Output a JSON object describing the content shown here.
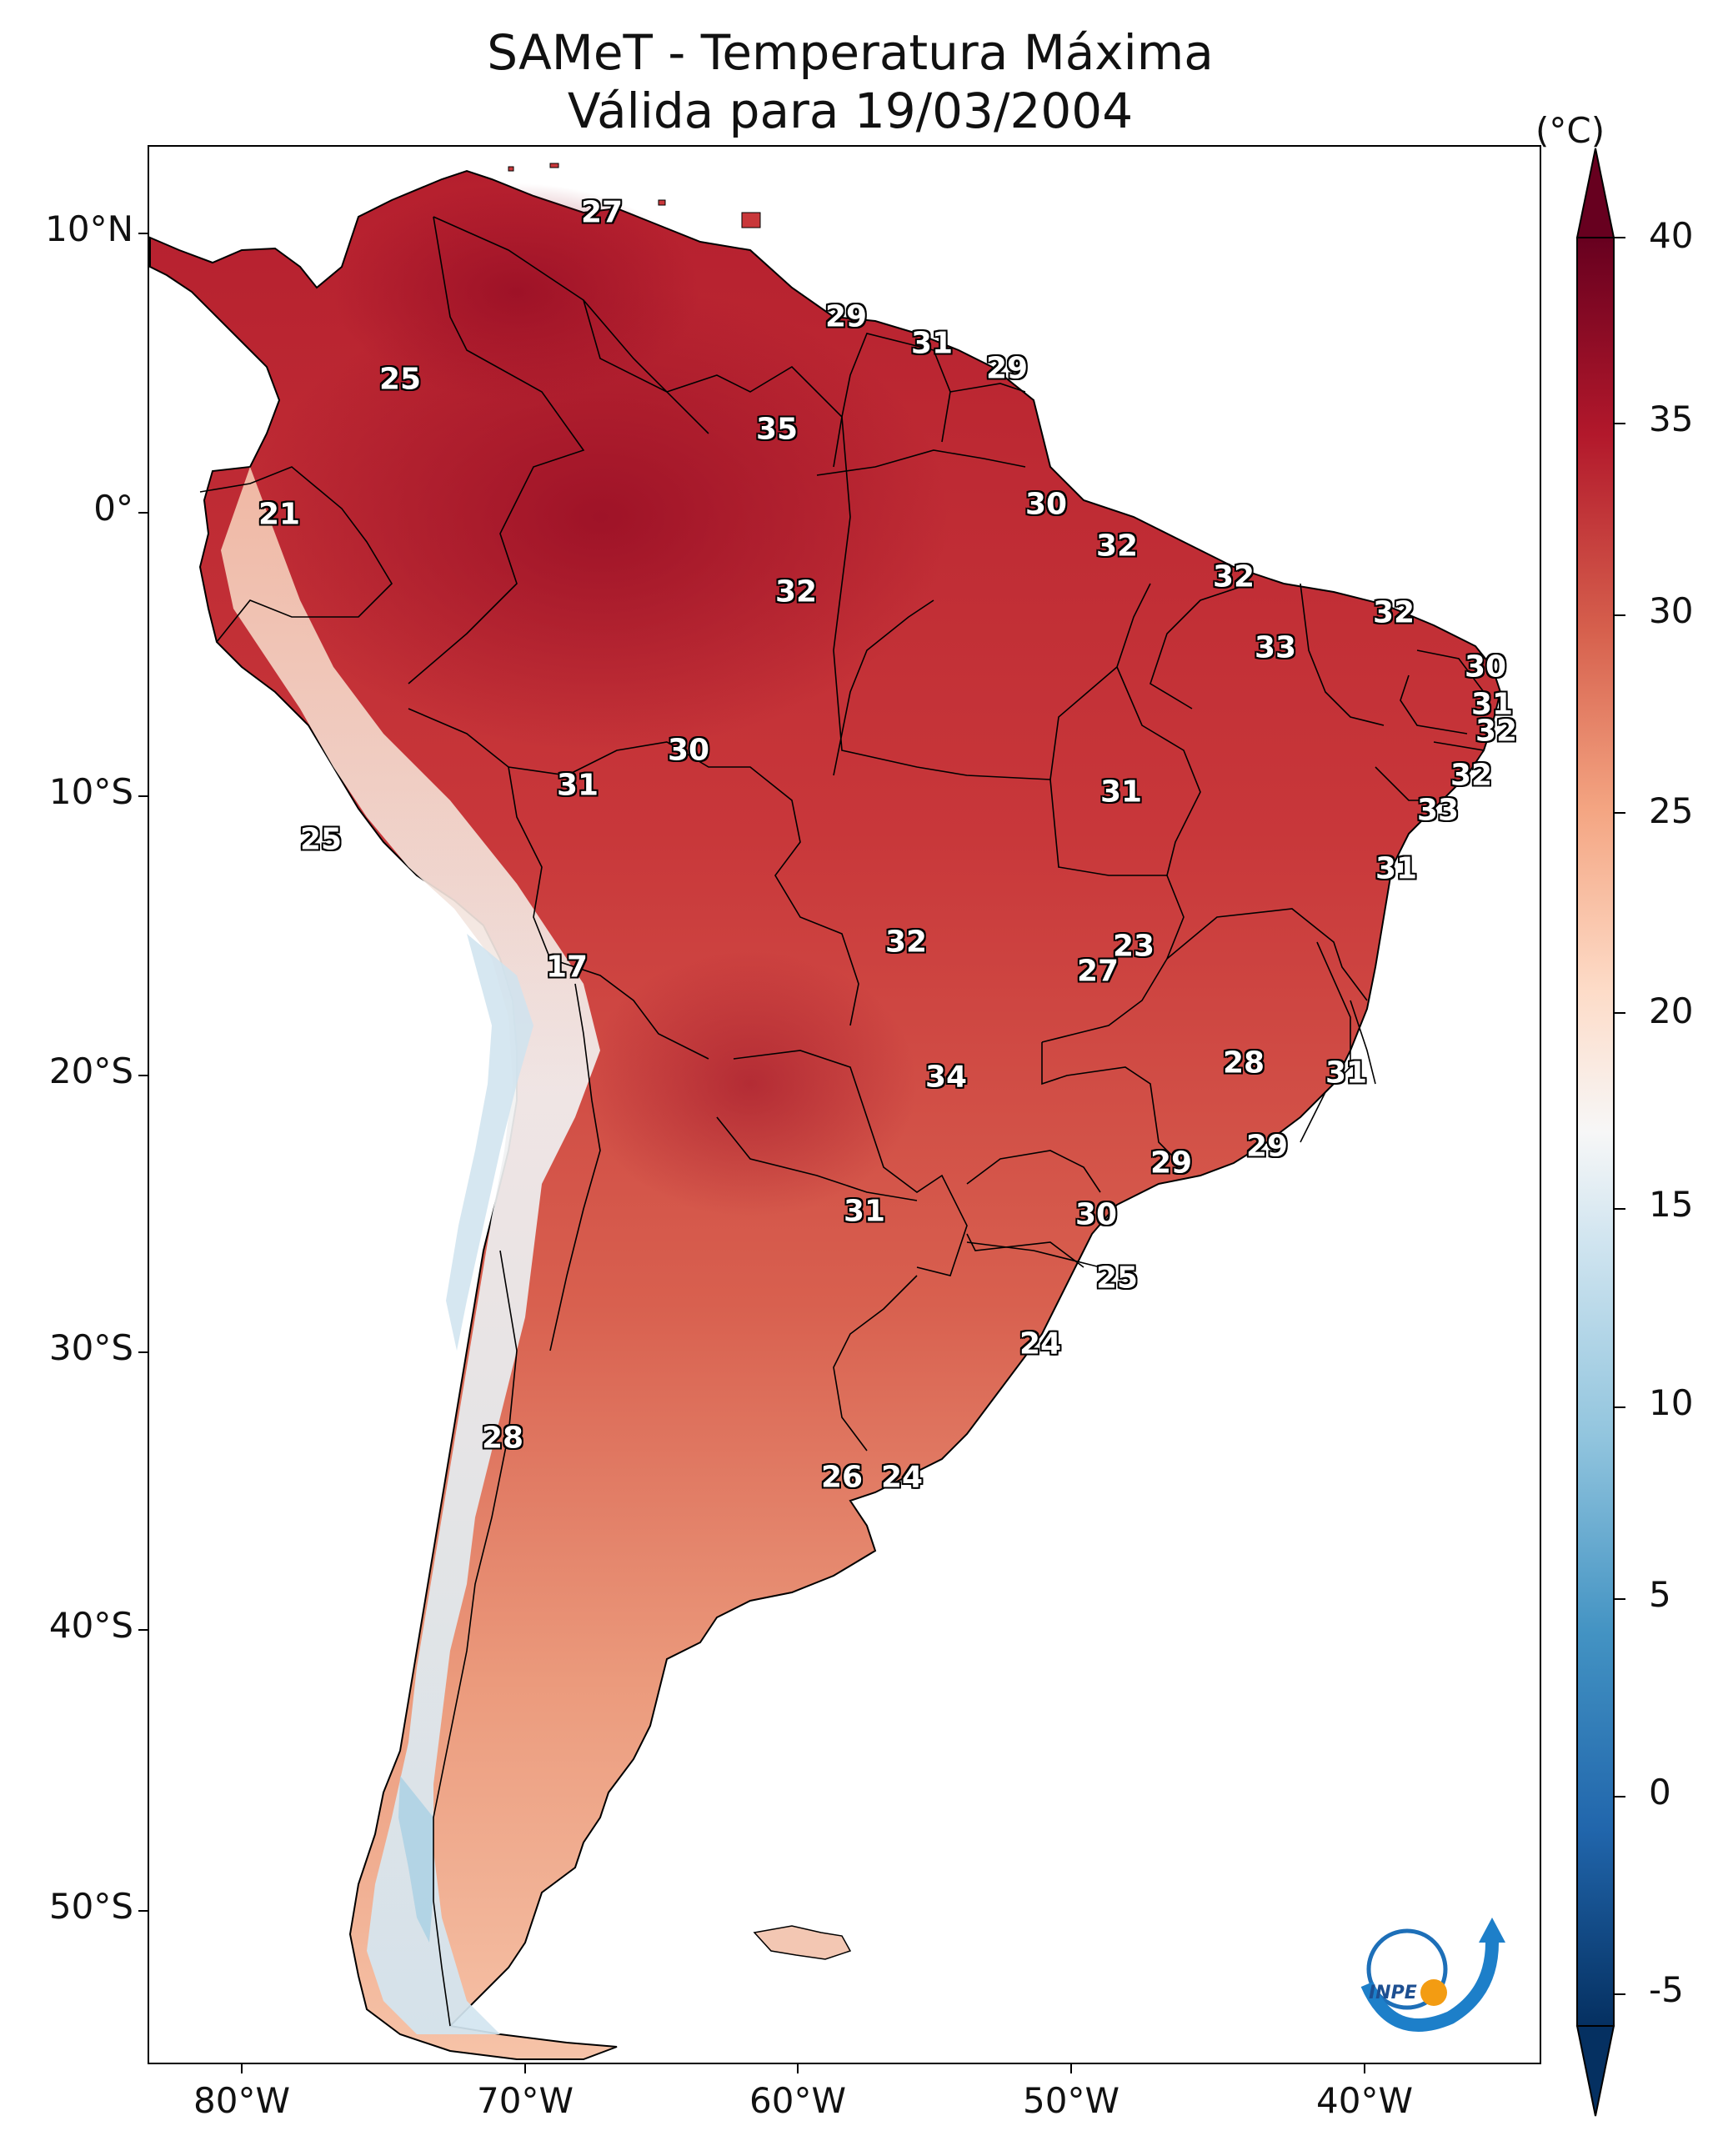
{
  "title": {
    "line1": "SAMeT - Temperatura Máxima",
    "line2": "Válida para 19/03/2004"
  },
  "axes": {
    "lat_ticks": [
      "10°N",
      "0°",
      "10°S",
      "20°S",
      "30°S",
      "40°S",
      "50°S"
    ],
    "lon_ticks": [
      "80°W",
      "70°W",
      "60°W",
      "50°W",
      "40°W"
    ]
  },
  "colorbar": {
    "unit": "(°C)",
    "ticks": [
      "40",
      "35",
      "30",
      "25",
      "20",
      "15",
      "10",
      "5",
      "0",
      "-5"
    ],
    "colormap": "RdBu_r",
    "range": [
      -5,
      40
    ]
  },
  "labels": [
    "27",
    "25",
    "29",
    "31",
    "29",
    "35",
    "21",
    "30",
    "32",
    "32",
    "32",
    "32",
    "33",
    "30",
    "31",
    "32",
    "30",
    "31",
    "32",
    "25",
    "31",
    "33",
    "31",
    "32",
    "17",
    "23",
    "27",
    "28",
    "34",
    "31",
    "29",
    "29",
    "31",
    "30",
    "25",
    "24",
    "28",
    "26",
    "24"
  ],
  "logo": {
    "text": "INPE"
  },
  "colors": {
    "hot": "#8b0a1f",
    "warm": "#c9373a",
    "mild": "#f2a582",
    "cool": "#f7f7f7",
    "cold": "#3b87bd"
  }
}
